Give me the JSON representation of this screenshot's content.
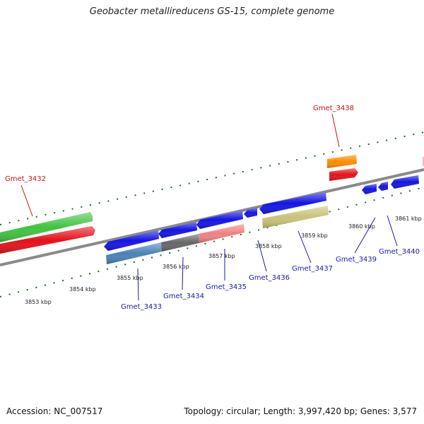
{
  "title": "Geobacter metallireducens GS-15, complete genome",
  "footer": {
    "accession": "Accession: NC_007517",
    "summary": "Topology: circular; Length: 3,997,420 bp; Genes: 3,577"
  },
  "kbp_labels": [
    "3853 kbp",
    "3854 kbp",
    "3855 kbp",
    "3856 kbp",
    "3857 kbp",
    "3858 kbp",
    "3859 kbp",
    "3860 kbp",
    "3861 kbp"
  ],
  "gene_labels": [
    "Gmet_3432",
    "Gmet_3438",
    "Gmet_3433",
    "Gmet_3434",
    "Gmet_3435",
    "Gmet_3436",
    "Gmet_3437",
    "Gmet_3439",
    "Gmet_3440"
  ],
  "colors": {
    "green": "#3fc43f",
    "red": "#e8101a",
    "orange": "#ff8c00",
    "blue": "#1414e6",
    "steelblue": "#4a82b8",
    "gray": "#666666",
    "salmon": "#f08080",
    "khaki": "#c9c27a",
    "pink": "#f5b6c8",
    "backbone": "#8a8a8a",
    "tick": "#1f6b1f",
    "label_red": "#cc1111",
    "label_blue": "#1a1aa6"
  }
}
